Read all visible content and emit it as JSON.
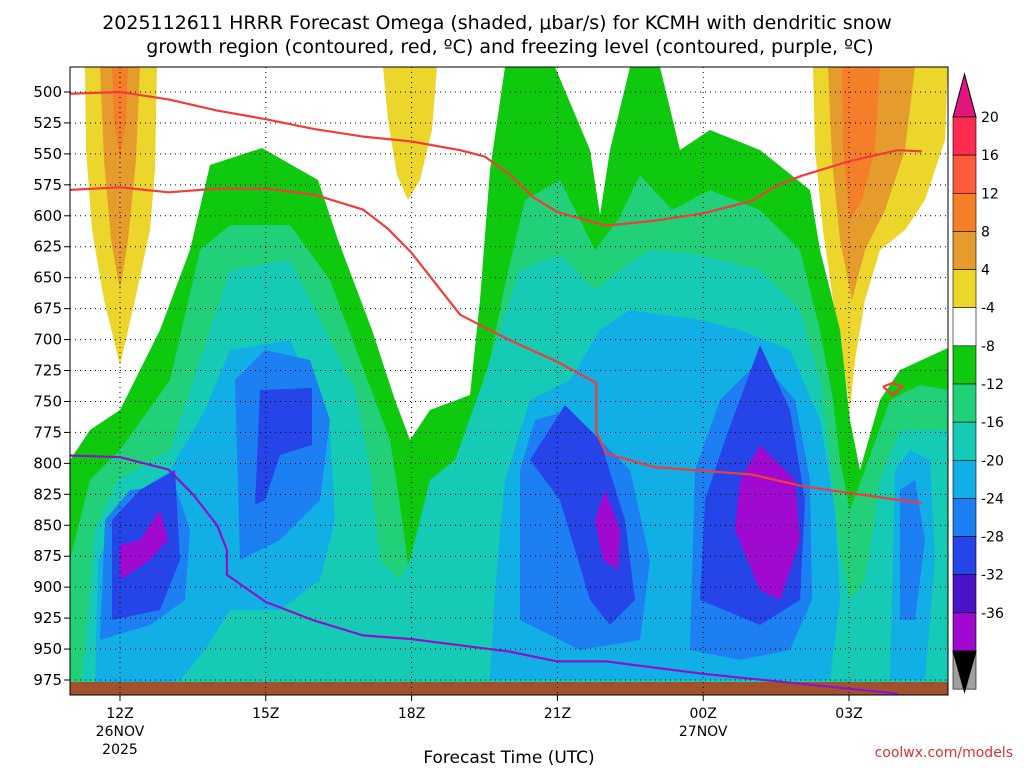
{
  "chart_data": {
    "type": "time-height cross section",
    "title_line1": "2025112611 HRRR Forecast Omega (shaded, μbar/s) for KCMH with dendritic snow",
    "title_line2": "growth region (contoured, red, ºC) and freezing level (contoured, purple, ºC)",
    "xlabel": "Forecast Time (UTC)",
    "ylabel": "",
    "credit": "coolwx.com/models",
    "pressure_levels": [
      "500",
      "525",
      "550",
      "575",
      "600",
      "625",
      "650",
      "675",
      "700",
      "725",
      "750",
      "775",
      "800",
      "825",
      "850",
      "875",
      "900",
      "925",
      "950",
      "975"
    ],
    "pressure_range": [
      490,
      990
    ],
    "time_range_hours": [
      10.5,
      28.5
    ],
    "time_ticks": [
      {
        "hour": 12,
        "label": "12Z",
        "sub1": "26NOV",
        "sub2": "2025"
      },
      {
        "hour": 15,
        "label": "15Z",
        "sub1": "",
        "sub2": ""
      },
      {
        "hour": 18,
        "label": "18Z",
        "sub1": "",
        "sub2": ""
      },
      {
        "hour": 21,
        "label": "21Z",
        "sub1": "",
        "sub2": ""
      },
      {
        "hour": 24,
        "label": "00Z",
        "sub1": "27NOV",
        "sub2": ""
      },
      {
        "hour": 27,
        "label": "03Z",
        "sub1": "",
        "sub2": ""
      }
    ],
    "colorbar": {
      "labels": [
        "20",
        "16",
        "12",
        "8",
        "4",
        "-4",
        "-8",
        "-12",
        "-16",
        "-20",
        "-24",
        "-28",
        "-32",
        "-36"
      ],
      "colors": [
        "#ff2b50",
        "#ff5a3c",
        "#f57f28",
        "#e59c2d",
        "#ecd62c",
        "#ffffff",
        "#0fc90f",
        "#23d07a",
        "#16cbb5",
        "#12aee6",
        "#1c80f2",
        "#2545e8",
        "#4b13c8",
        "#a00ad0",
        "#a0a0a0"
      ],
      "top_arrow_color": "#e0157d",
      "bottom_arrow_color": "#000000"
    },
    "series": [
      {
        "name": "dendritic growth region upper bound (-12 ºC)",
        "color": "#f03c3c",
        "points": [
          [
            10.5,
            502
          ],
          [
            12.0,
            500
          ],
          [
            13.0,
            506
          ],
          [
            14.0,
            515
          ],
          [
            15.0,
            522
          ],
          [
            16.0,
            530
          ],
          [
            17.0,
            536
          ],
          [
            18.0,
            540
          ],
          [
            19.0,
            547
          ],
          [
            19.5,
            552
          ],
          [
            20.0,
            566
          ],
          [
            20.5,
            585
          ],
          [
            21.0,
            597
          ],
          [
            22.0,
            608
          ],
          [
            23.0,
            604
          ],
          [
            24.0,
            598
          ],
          [
            25.0,
            588
          ],
          [
            25.5,
            576
          ],
          [
            26.0,
            568
          ],
          [
            27.0,
            556
          ],
          [
            28.0,
            547
          ],
          [
            28.5,
            548
          ]
        ]
      },
      {
        "name": "dendritic growth region lower bound (-18 ºC)",
        "color": "#f03c3c",
        "points": [
          [
            10.5,
            580
          ],
          [
            12.0,
            577
          ],
          [
            13.0,
            581
          ],
          [
            14.0,
            578
          ],
          [
            15.0,
            578
          ],
          [
            16.0,
            583
          ],
          [
            17.0,
            595
          ],
          [
            17.5,
            610
          ],
          [
            18.0,
            630
          ],
          [
            18.5,
            655
          ],
          [
            19.0,
            680
          ],
          [
            20.0,
            700
          ],
          [
            21.0,
            718
          ],
          [
            21.8,
            735
          ],
          [
            21.8,
            775
          ],
          [
            22.0,
            792
          ],
          [
            23.0,
            803
          ],
          [
            24.0,
            806
          ],
          [
            25.0,
            809
          ],
          [
            26.0,
            818
          ],
          [
            27.0,
            824
          ],
          [
            28.5,
            832
          ]
        ]
      },
      {
        "name": "freezing level (0 ºC)",
        "color": "#8a14c8",
        "points": [
          [
            10.5,
            793
          ],
          [
            12.0,
            795
          ],
          [
            13.0,
            805
          ],
          [
            13.5,
            825
          ],
          [
            14.0,
            850
          ],
          [
            14.2,
            870
          ],
          [
            14.2,
            890
          ],
          [
            15.0,
            912
          ],
          [
            16.0,
            927
          ],
          [
            17.0,
            939
          ],
          [
            18.0,
            942
          ],
          [
            19.0,
            947
          ],
          [
            20.0,
            952
          ],
          [
            21.0,
            960
          ],
          [
            22.0,
            960
          ],
          [
            23.0,
            965
          ],
          [
            24.0,
            970
          ],
          [
            25.0,
            974
          ],
          [
            26.0,
            978
          ],
          [
            27.0,
            982
          ],
          [
            28.0,
            986
          ]
        ]
      },
      {
        "name": "small closed red contour",
        "color": "#f03c3c",
        "points": [
          [
            27.7,
            738
          ],
          [
            27.9,
            735
          ],
          [
            28.1,
            738
          ],
          [
            27.9,
            745
          ],
          [
            27.7,
            738
          ]
        ]
      }
    ]
  }
}
